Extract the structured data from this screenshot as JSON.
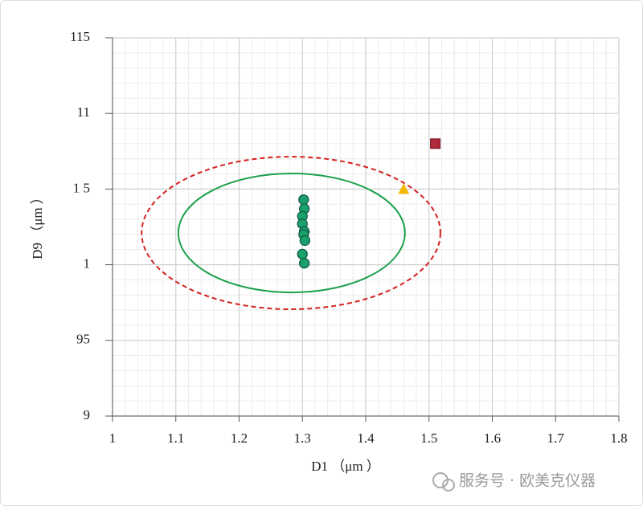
{
  "chart_data": {
    "type": "scatter",
    "x_label": "D1 （μm ）",
    "y_label": "D9 （μm ）",
    "xlim": [
      1,
      1.8
    ],
    "xticks": [
      1,
      1.1,
      1.2,
      1.3,
      1.4,
      1.5,
      1.6,
      1.7,
      1.8
    ],
    "ylim": [
      9,
      11.5
    ],
    "yticks": [
      9,
      {
        "value": 9.5,
        "label": "95"
      },
      {
        "value": 10,
        "label": "1"
      },
      {
        "value": 10.5,
        "label": "1 5"
      },
      11,
      {
        "value": 11.5,
        "label": "115"
      }
    ],
    "grid": true,
    "minor_divisions": 5,
    "series": [
      {
        "marker": "circle",
        "color": "#1aa06a",
        "x": [
          1.302,
          1.303,
          1.3,
          1.3,
          1.303,
          1.302,
          1.304,
          1.3,
          1.303
        ],
        "values": [
          10.43,
          10.37,
          10.32,
          10.27,
          10.22,
          10.2,
          10.16,
          10.07,
          10.01
        ]
      },
      {
        "marker": "triangle",
        "color": "#f2b800",
        "x": [
          1.46
        ],
        "values": [
          10.5
        ]
      },
      {
        "marker": "square",
        "color": "#b0283a",
        "x": [
          1.51
        ],
        "values": [
          10.8
        ]
      }
    ],
    "ellipses": [
      {
        "center_x": 1.283,
        "center_y": 10.21,
        "rx": 0.179,
        "ry": 0.393,
        "color": "#1aa04a",
        "dashed": false
      },
      {
        "center_x": 1.282,
        "center_y": 10.21,
        "rx": 0.236,
        "ry": 0.504,
        "color": "#d42020",
        "dashed": true
      }
    ],
    "watermark": "服务号 · 欧美克仪器"
  }
}
